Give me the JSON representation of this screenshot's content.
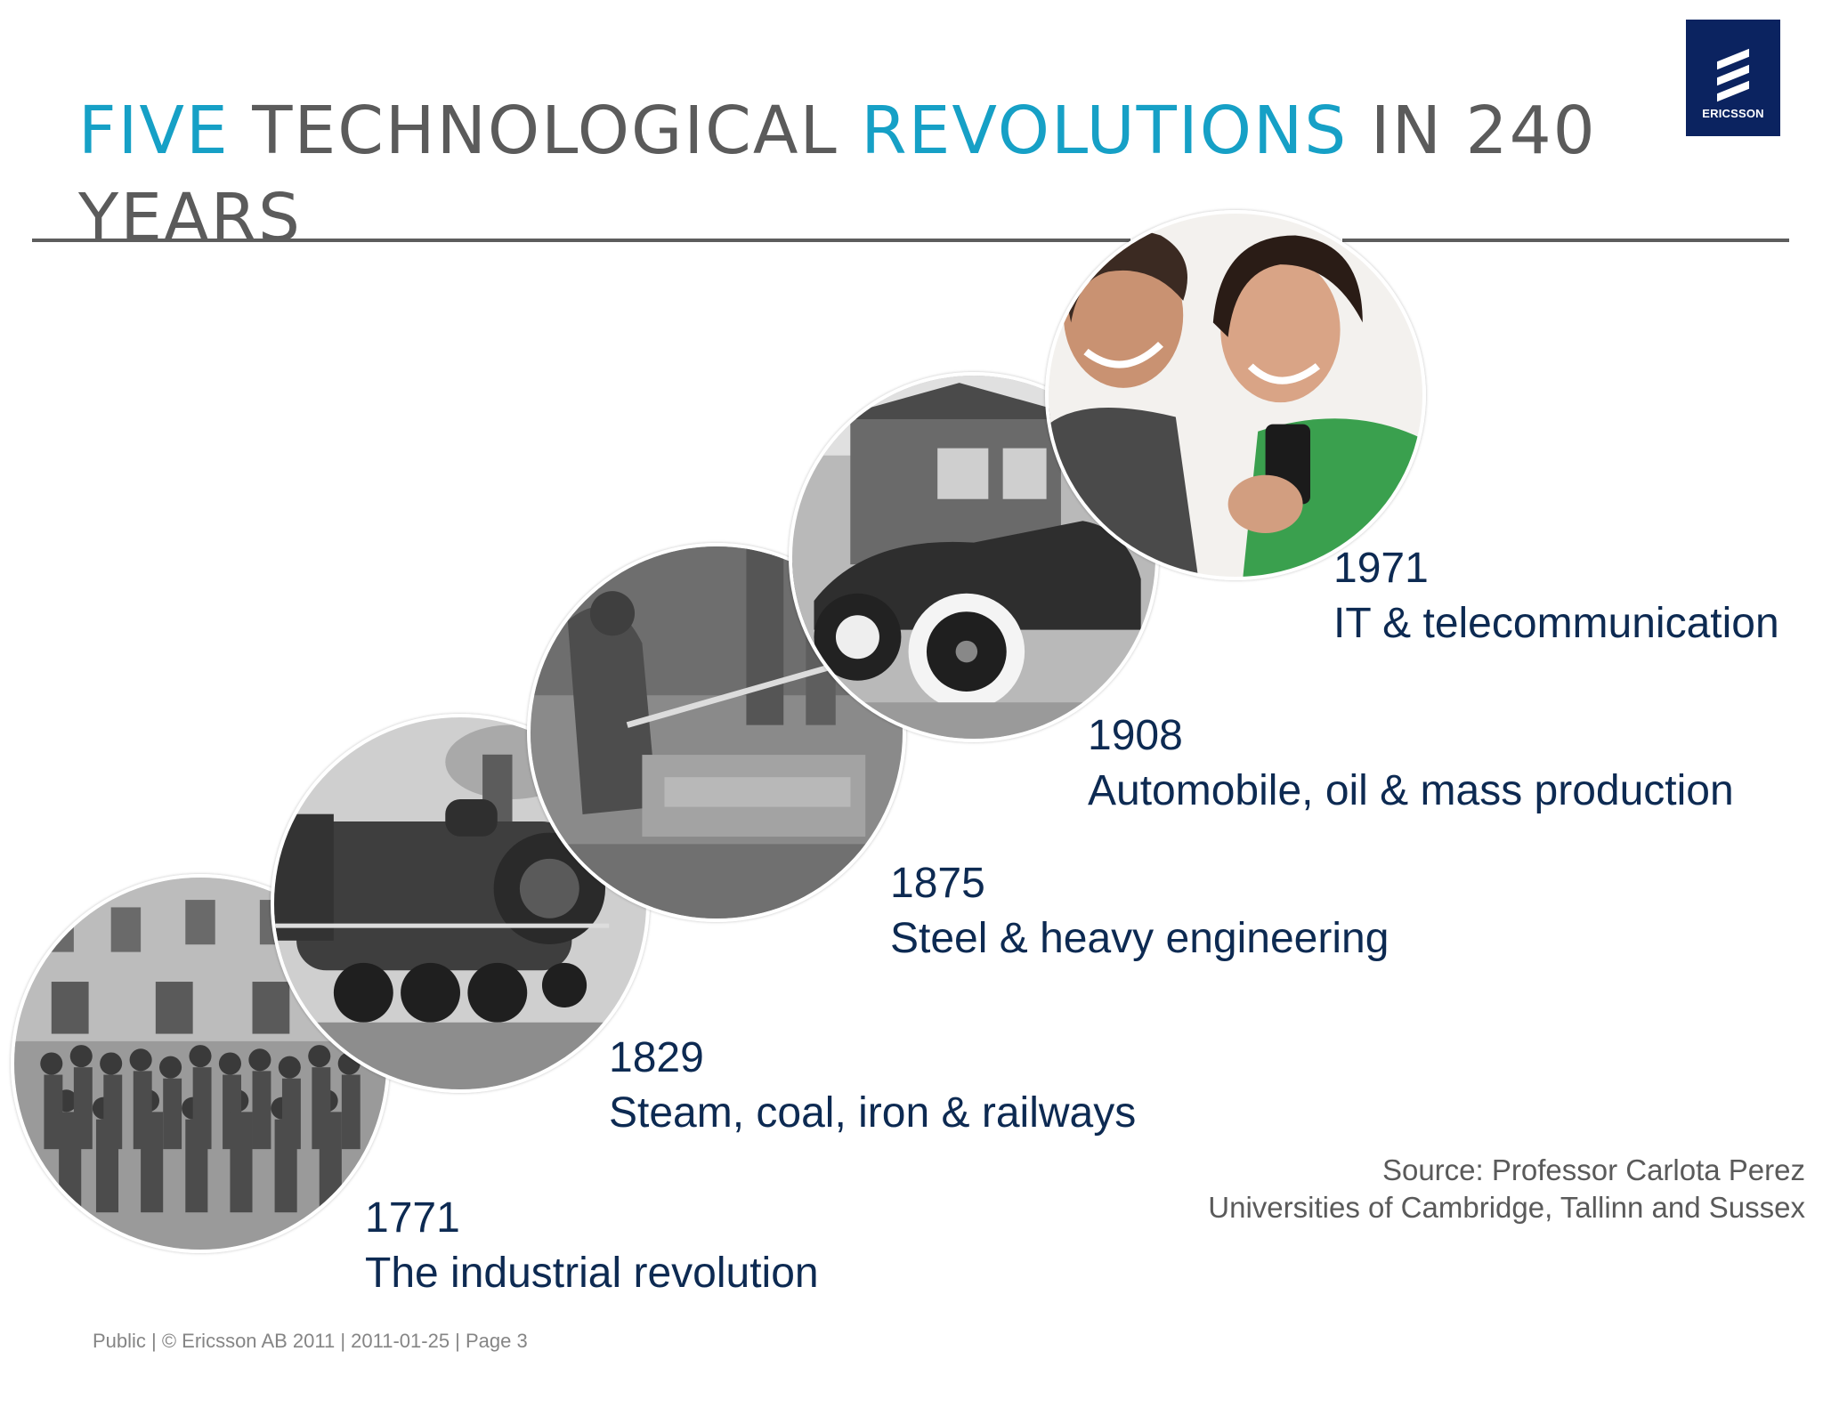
{
  "slide": {
    "title": {
      "part1": "FIVE",
      "part2": " TECHNOLOGICAL ",
      "part3": "REVOLUTIONS",
      "part4": " IN 240 YEARS"
    },
    "logo_text": "ERICSSON",
    "eras": [
      {
        "year": "1771",
        "label": "The industrial revolution"
      },
      {
        "year": "1829",
        "label": "Steam, coal, iron & railways"
      },
      {
        "year": "1875",
        "label": "Steel & heavy engineering"
      },
      {
        "year": "1908",
        "label": "Automobile, oil & mass production"
      },
      {
        "year": "1971",
        "label": "IT & telecommunication"
      }
    ],
    "source": {
      "line1": "Source: Professor Carlota Perez",
      "line2": "Universities of Cambridge, Tallinn and Sussex"
    },
    "footer": "Public  |  © Ericsson AB 2011  |  2011-01-25  |  Page 3"
  },
  "colors": {
    "accent": "#16a0c6",
    "title_gray": "#5b5b5b",
    "era_text": "#0d2a52",
    "logo_bg": "#0b2360"
  }
}
